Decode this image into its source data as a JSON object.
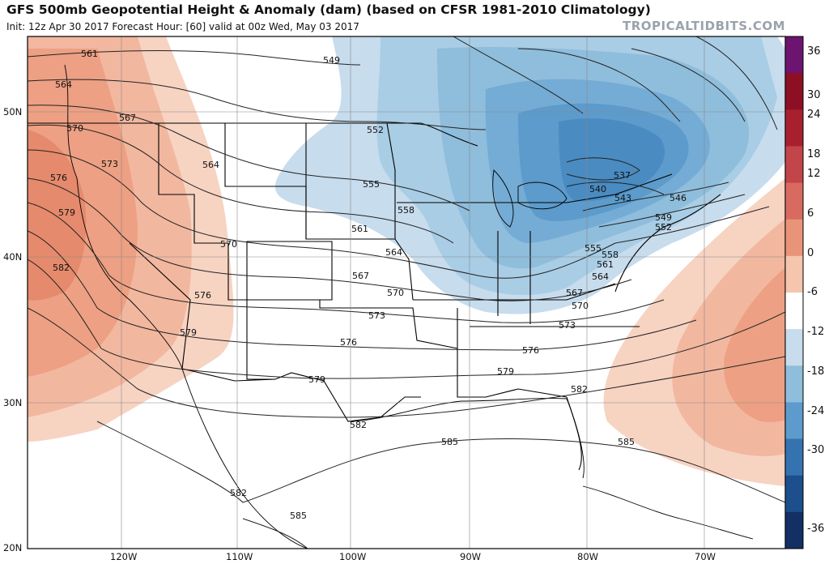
{
  "header": {
    "title": "GFS 500mb Geopotential Height & Anomaly (dam) (based on CFSR 1981-2010 Climatology)",
    "subtitle": "Init: 12z Apr 30 2017   Forecast Hour: [60]   valid at 00z Wed, May 03 2017",
    "credit": "TROPICALTIDBITS.COM"
  },
  "axes": {
    "lat_labels": [
      "50N",
      "40N",
      "30N",
      "20N"
    ],
    "lon_labels": [
      "120W",
      "110W",
      "100W",
      "90W",
      "80W",
      "70W"
    ]
  },
  "colorbar": {
    "labels": [
      "36",
      "30",
      "24",
      "18",
      "12",
      "6",
      "0",
      "-6",
      "-12",
      "-18",
      "-24",
      "-30",
      "-36"
    ],
    "colors": [
      "#6d1470",
      "#8c0f23",
      "#a8202e",
      "#c2454a",
      "#d86a60",
      "#e99478",
      "#f5c5ad",
      "#ffffff",
      "#c7dced",
      "#8fbddc",
      "#5c9bcb",
      "#3473b0",
      "#1c4f8c",
      "#132f64"
    ]
  },
  "height_contour_labels": [
    "549",
    "552",
    "555",
    "558",
    "561",
    "564",
    "567",
    "570",
    "573",
    "576",
    "579",
    "582",
    "585",
    "537",
    "540",
    "543",
    "546"
  ],
  "map_colors": {
    "positive_anomaly": "#e9967a",
    "negative_anomaly": "#5f9ccc",
    "land_background": "#ffffff"
  }
}
